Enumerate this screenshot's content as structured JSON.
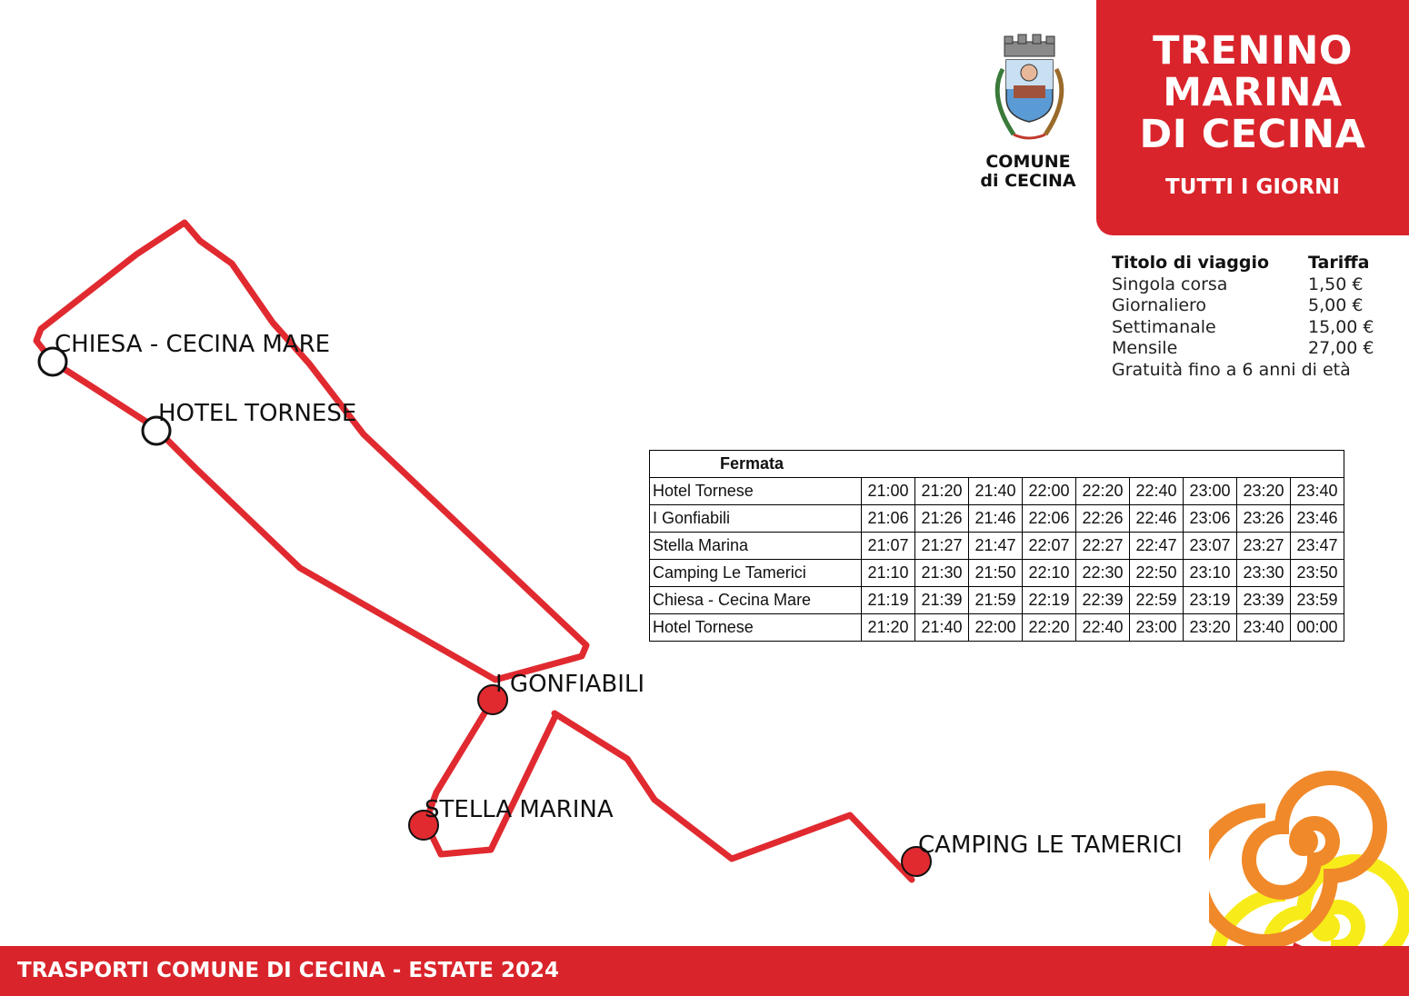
{
  "title": {
    "lines": [
      "TRENINO",
      "MARINA",
      "DI CECINA"
    ],
    "subtitle": "TUTTI I GIORNI",
    "background_color": "#d9242b"
  },
  "logo": {
    "line1": "COMUNE",
    "line2": "di CECINA",
    "icon": "coat-of-arms-icon"
  },
  "fares": {
    "header": {
      "ticket": "Titolo di viaggio",
      "price": "Tariffa"
    },
    "rows": [
      {
        "ticket": "Singola corsa",
        "price": "1,50 €"
      },
      {
        "ticket": "Giornaliero",
        "price": "5,00 €"
      },
      {
        "ticket": "Settimanale",
        "price": "15,00 €"
      },
      {
        "ticket": "Mensile",
        "price": "27,00 €"
      }
    ],
    "note": "Gratuità fino a 6 anni di età"
  },
  "timetable": {
    "header": "Fermata",
    "rows": [
      {
        "stop": "Hotel Tornese",
        "times": [
          "21:00",
          "21:20",
          "21:40",
          "22:00",
          "22:20",
          "22:40",
          "23:00",
          "23:20",
          "23:40"
        ]
      },
      {
        "stop": "I Gonfiabili",
        "times": [
          "21:06",
          "21:26",
          "21:46",
          "22:06",
          "22:26",
          "22:46",
          "23:06",
          "23:26",
          "23:46"
        ]
      },
      {
        "stop": "Stella Marina",
        "times": [
          "21:07",
          "21:27",
          "21:47",
          "22:07",
          "22:27",
          "22:47",
          "23:07",
          "23:27",
          "23:47"
        ]
      },
      {
        "stop": "Camping Le Tamerici",
        "times": [
          "21:10",
          "21:30",
          "21:50",
          "22:10",
          "22:30",
          "22:50",
          "23:10",
          "23:30",
          "23:50"
        ]
      },
      {
        "stop": "Chiesa - Cecina Mare",
        "times": [
          "21:19",
          "21:39",
          "21:59",
          "22:19",
          "22:39",
          "22:59",
          "23:19",
          "23:39",
          "23:59"
        ]
      },
      {
        "stop": "Hotel Tornese",
        "times": [
          "21:20",
          "21:40",
          "22:00",
          "22:20",
          "22:40",
          "23:00",
          "23:20",
          "23:40",
          "00:00"
        ]
      }
    ]
  },
  "map": {
    "route_color": "#e02a30",
    "stops": {
      "chiesa": "CHIESA - CECINA MARE",
      "hotel": "HOTEL TORNESE",
      "gonfiabili": "I GONFIABILI",
      "stella": "STELLA MARINA",
      "camping": "CAMPING LE TAMERICI"
    }
  },
  "footer": {
    "text": "TRASPORTI COMUNE DI CECINA - ESTATE 2024",
    "background_color": "#d9242b"
  },
  "decoration": {
    "spiral_orange": "#f0892a",
    "spiral_yellow": "#f7ec1a",
    "spiral_red": "#d9242b"
  }
}
